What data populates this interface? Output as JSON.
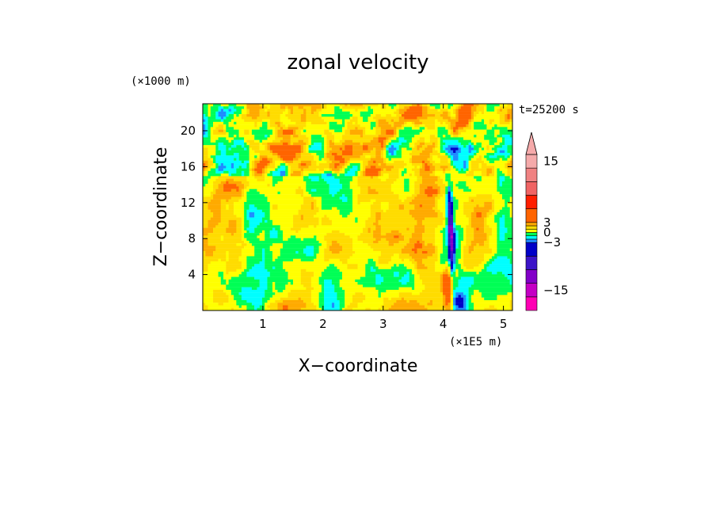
{
  "chart_data": {
    "type": "heatmap",
    "title": "zonal velocity",
    "xlabel": "X−coordinate",
    "ylabel": "Z−coordinate",
    "x_unit": "(×1E5 m)",
    "y_unit": "(×1000 m)",
    "time_label": "t=25200 s",
    "xlim": [
      0,
      5.15
    ],
    "ylim": [
      0,
      23
    ],
    "x_ticks": [
      1,
      2,
      3,
      4,
      5
    ],
    "x_tick_labels": [
      "1",
      "2",
      "3",
      "4",
      "5"
    ],
    "y_ticks": [
      4,
      8,
      12,
      16,
      20
    ],
    "y_tick_labels": [
      "4",
      "8",
      "12",
      "16",
      "20"
    ],
    "colorbar": {
      "levels": [
        {
          "from": -18,
          "to": -15,
          "color": "#ff00b4"
        },
        {
          "from": -15,
          "to": -12,
          "color": "#c400c4"
        },
        {
          "from": -12,
          "to": -9,
          "color": "#8200c8"
        },
        {
          "from": -9,
          "to": -6,
          "color": "#3c14c8"
        },
        {
          "from": -6,
          "to": -3,
          "color": "#0000c8"
        },
        {
          "from": -3,
          "to": -2,
          "color": "#1e8cff"
        },
        {
          "from": -2,
          "to": -1,
          "color": "#00ffff"
        },
        {
          "from": -1,
          "to": 0,
          "color": "#00ff55"
        },
        {
          "from": 0,
          "to": 1,
          "color": "#ffff00"
        },
        {
          "from": 1,
          "to": 2,
          "color": "#ffdc00"
        },
        {
          "from": 2,
          "to": 3,
          "color": "#ffaa00"
        },
        {
          "from": 3,
          "to": 6,
          "color": "#ff6400"
        },
        {
          "from": 6,
          "to": 9,
          "color": "#ff1e00"
        },
        {
          "from": 9,
          "to": 12,
          "color": "#f06464"
        },
        {
          "from": 12,
          "to": 15,
          "color": "#f08282"
        },
        {
          "from": 15,
          "to": 18,
          "color": "#f5aaaa"
        }
      ],
      "overflow_color": "#f5aaaa",
      "tick_values": [
        15,
        3,
        0,
        -3,
        -15
      ],
      "tick_labels": [
        "15",
        "3",
        "0",
        "−3",
        "−15"
      ]
    }
  }
}
